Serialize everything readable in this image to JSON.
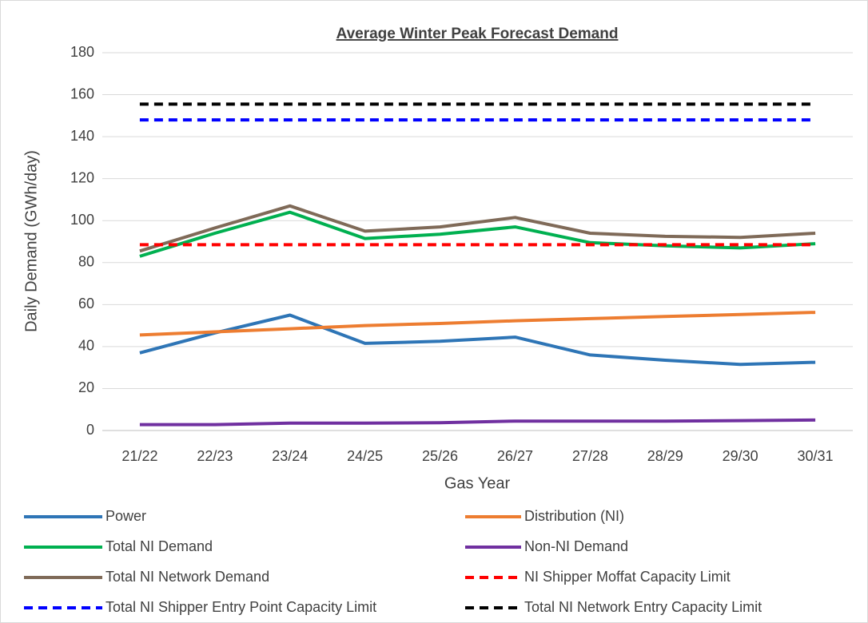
{
  "chart_data": {
    "type": "line",
    "title": "Average Winter Peak Forecast Demand",
    "x_label": "Gas Year",
    "y_label": "Daily Demand (GWh/day)",
    "categories": [
      "21/22",
      "22/23",
      "23/24",
      "24/25",
      "25/26",
      "26/27",
      "27/28",
      "28/29",
      "29/30",
      "30/31"
    ],
    "ylim": [
      0,
      180
    ],
    "yticks": [
      0,
      20,
      40,
      60,
      80,
      100,
      120,
      140,
      160,
      180
    ],
    "grid": true,
    "series": [
      {
        "name": "Power",
        "color": "#2e75b6",
        "style": "solid",
        "values": [
          37,
          46.5,
          55,
          41.5,
          42.5,
          44.5,
          36,
          33.5,
          31.5,
          32.5
        ]
      },
      {
        "name": "Distribution (NI)",
        "color": "#ed7d31",
        "style": "solid",
        "values": [
          45.5,
          47,
          48.5,
          50,
          51,
          52.3,
          53.3,
          54.3,
          55.3,
          56.3
        ]
      },
      {
        "name": "Total NI Demand",
        "color": "#00b050",
        "style": "solid",
        "values": [
          83,
          94,
          104,
          91.5,
          93.5,
          97,
          89.5,
          88,
          87,
          89
        ]
      },
      {
        "name": "Non-NI Demand",
        "color": "#7030a0",
        "style": "solid",
        "values": [
          2.8,
          2.8,
          3.5,
          3.5,
          3.7,
          4.5,
          4.5,
          4.5,
          4.7,
          5
        ]
      },
      {
        "name": "Total NI Network Demand",
        "color": "#7f6a58",
        "style": "solid",
        "values": [
          85.5,
          96.5,
          107,
          95,
          97,
          101.5,
          94,
          92.5,
          92,
          94
        ]
      },
      {
        "name": "NI Shipper Moffat Capacity Limit",
        "color": "#ff0000",
        "style": "dashed",
        "values": [
          88.5,
          88.5,
          88.5,
          88.5,
          88.5,
          88.5,
          88.5,
          88.5,
          88.5,
          88.5
        ]
      },
      {
        "name": "Total NI Shipper Entry Point Capacity Limit",
        "color": "#0000ff",
        "style": "dashed",
        "values": [
          148,
          148,
          148,
          148,
          148,
          148,
          148,
          148,
          148,
          148
        ]
      },
      {
        "name": "Total NI Network Entry Capacity Limit",
        "color": "#000000",
        "style": "dashed",
        "values": [
          155.5,
          155.5,
          155.5,
          155.5,
          155.5,
          155.5,
          155.5,
          155.5,
          155.5,
          155.5
        ]
      }
    ]
  }
}
